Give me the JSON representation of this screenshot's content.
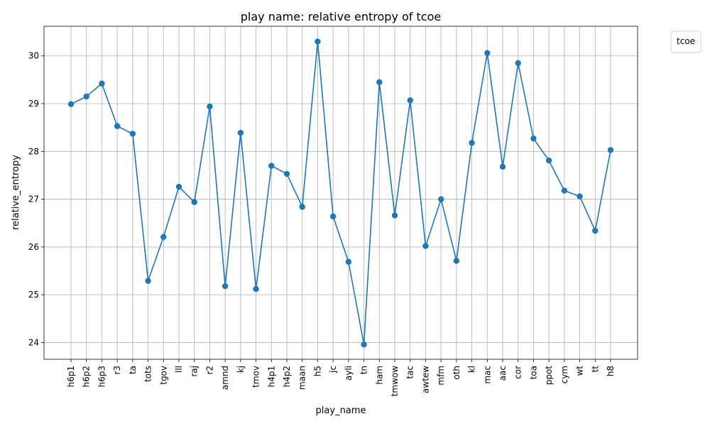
{
  "chart_data": {
    "type": "line",
    "title": "play name: relative entropy of tcoe",
    "xlabel": "play_name",
    "ylabel": "relative_entropy",
    "categories": [
      "h6p1",
      "h6p2",
      "h6p3",
      "r3",
      "ta",
      "tots",
      "tgov",
      "lll",
      "raj",
      "r2",
      "amnd",
      "kj",
      "tmov",
      "h4p1",
      "h4p2",
      "maan",
      "h5",
      "jc",
      "ayli",
      "tn",
      "ham",
      "tmwow",
      "tac",
      "awtew",
      "mfm",
      "oth",
      "kl",
      "mac",
      "aac",
      "cor",
      "toa",
      "ppot",
      "cym",
      "wt",
      "tt",
      "h8"
    ],
    "series": [
      {
        "values": [
          28.99,
          29.15,
          29.42,
          28.53,
          28.37,
          25.29,
          26.21,
          27.26,
          26.94,
          28.94,
          25.18,
          28.39,
          25.12,
          27.7,
          27.53,
          26.84,
          30.3,
          26.64,
          25.69,
          23.96,
          29.45,
          26.66,
          29.07,
          26.02,
          27.0,
          25.71,
          28.18,
          30.06,
          27.68,
          29.85,
          28.27,
          27.81,
          27.18,
          27.06,
          26.34,
          28.03
        ],
        "color": "#1f77b4"
      }
    ],
    "ylim": [
      23.65,
      30.62
    ],
    "yticks": [
      24,
      25,
      26,
      27,
      28,
      29,
      30
    ],
    "grid": true,
    "legend": {
      "title": "tcoe",
      "placement": "outside-top-right"
    }
  }
}
